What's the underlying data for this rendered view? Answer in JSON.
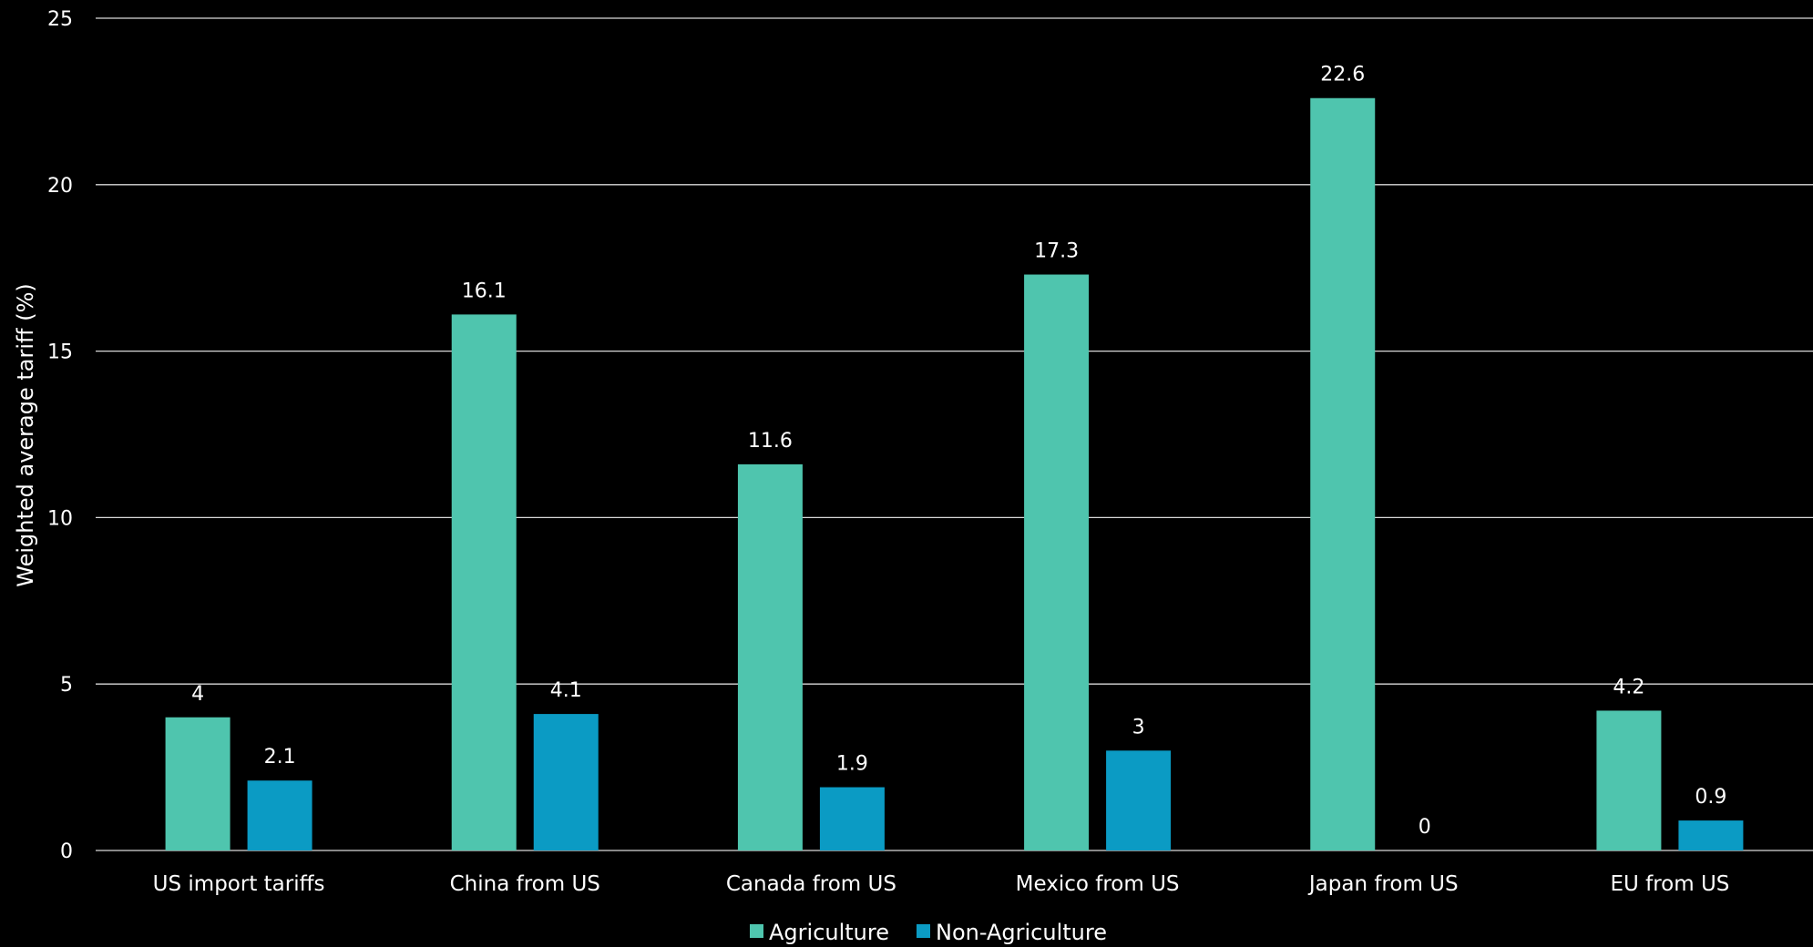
{
  "chart_data": {
    "type": "bar",
    "title": "",
    "xlabel": "",
    "ylabel": "Weighted average tariff (%)",
    "ylim": [
      0,
      25
    ],
    "yticks": [
      0,
      5,
      10,
      15,
      20,
      25
    ],
    "grid": true,
    "legend_position": "bottom-center",
    "categories": [
      "US import tariffs",
      "China from US",
      "Canada from US",
      "Mexico from US",
      "Japan from US",
      "EU from US"
    ],
    "series": [
      {
        "name": "Agriculture",
        "color": "#4fc5ae",
        "values": [
          4,
          16.1,
          11.6,
          17.3,
          22.6,
          4.2
        ],
        "labels": [
          "4",
          "16.1",
          "11.6",
          "17.3",
          "22.6",
          "4.2"
        ]
      },
      {
        "name": "Non-Agriculture",
        "color": "#0b9bc4",
        "values": [
          2.1,
          4.1,
          1.9,
          3,
          0,
          0.9
        ],
        "labels": [
          "2.1",
          "4.1",
          "1.9",
          "3",
          "0",
          "0.9"
        ]
      }
    ]
  }
}
